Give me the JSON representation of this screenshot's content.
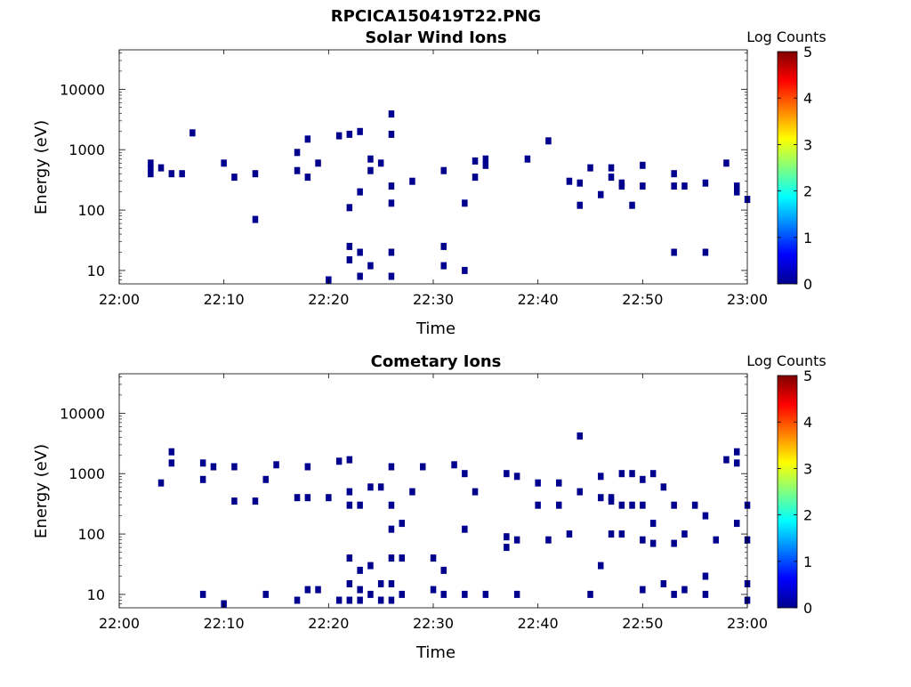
{
  "figure_title": "RPCICA150419T22.PNG",
  "colorbar": {
    "label": "Log Counts",
    "ticks": [
      "0",
      "1",
      "2",
      "3",
      "4",
      "5"
    ],
    "range": [
      0,
      5
    ],
    "colormap": "jet"
  },
  "chart_data": [
    {
      "type": "heatmap",
      "title": "Solar Wind Ions",
      "xlabel": "Time",
      "ylabel": "Energy (eV)",
      "xlim": [
        "22:00",
        "23:00"
      ],
      "ylim": [
        6,
        45000
      ],
      "yscale": "log",
      "x_ticks": [
        "22:00",
        "22:10",
        "22:20",
        "22:30",
        "22:40",
        "22:50",
        "23:00"
      ],
      "y_ticks": [
        "10",
        "100",
        "1000",
        "10000"
      ],
      "cells": [
        [
          "22:03",
          400
        ],
        [
          "22:03",
          500
        ],
        [
          "22:03",
          600
        ],
        [
          "22:04",
          500
        ],
        [
          "22:05",
          400
        ],
        [
          "22:06",
          400
        ],
        [
          "22:07",
          1900
        ],
        [
          "22:10",
          600
        ],
        [
          "22:11",
          350
        ],
        [
          "22:13",
          400
        ],
        [
          "22:13",
          70
        ],
        [
          "22:17",
          450
        ],
        [
          "22:17",
          900
        ],
        [
          "22:18",
          350
        ],
        [
          "22:18",
          1500
        ],
        [
          "22:19",
          600
        ],
        [
          "22:20",
          7
        ],
        [
          "22:21",
          1700
        ],
        [
          "22:22",
          110
        ],
        [
          "22:22",
          1800
        ],
        [
          "22:22",
          25
        ],
        [
          "22:22",
          15
        ],
        [
          "22:23",
          2000
        ],
        [
          "22:23",
          200
        ],
        [
          "22:23",
          20
        ],
        [
          "22:23",
          8
        ],
        [
          "22:24",
          700
        ],
        [
          "22:24",
          450
        ],
        [
          "22:24",
          12
        ],
        [
          "22:25",
          600
        ],
        [
          "22:26",
          1800
        ],
        [
          "22:26",
          3900
        ],
        [
          "22:26",
          250
        ],
        [
          "22:26",
          130
        ],
        [
          "22:26",
          20
        ],
        [
          "22:26",
          8
        ],
        [
          "22:28",
          300
        ],
        [
          "22:31",
          12
        ],
        [
          "22:31",
          25
        ],
        [
          "22:31",
          450
        ],
        [
          "22:33",
          10
        ],
        [
          "22:33",
          130
        ],
        [
          "22:34",
          650
        ],
        [
          "22:34",
          350
        ],
        [
          "22:35",
          700
        ],
        [
          "22:35",
          550
        ],
        [
          "22:39",
          700
        ],
        [
          "22:41",
          1400
        ],
        [
          "22:43",
          300
        ],
        [
          "22:44",
          120
        ],
        [
          "22:44",
          280
        ],
        [
          "22:45",
          500
        ],
        [
          "22:46",
          180
        ],
        [
          "22:47",
          500
        ],
        [
          "22:47",
          350
        ],
        [
          "22:48",
          280
        ],
        [
          "22:48",
          250
        ],
        [
          "22:49",
          120
        ],
        [
          "22:50",
          250
        ],
        [
          "22:50",
          550
        ],
        [
          "22:53",
          20
        ],
        [
          "22:53",
          400
        ],
        [
          "22:53",
          250
        ],
        [
          "22:54",
          250
        ],
        [
          "22:56",
          20
        ],
        [
          "22:56",
          280
        ],
        [
          "22:58",
          600
        ],
        [
          "22:59",
          250
        ],
        [
          "22:59",
          200
        ],
        [
          "23:00",
          150
        ]
      ]
    },
    {
      "type": "heatmap",
      "title": "Cometary Ions",
      "xlabel": "Time",
      "ylabel": "Energy (eV)",
      "xlim": [
        "22:00",
        "23:00"
      ],
      "ylim": [
        6,
        45000
      ],
      "yscale": "log",
      "x_ticks": [
        "22:00",
        "22:10",
        "22:20",
        "22:30",
        "22:40",
        "22:50",
        "23:00"
      ],
      "y_ticks": [
        "10",
        "100",
        "1000",
        "10000"
      ],
      "cells": [
        [
          "22:04",
          700
        ],
        [
          "22:05",
          1500
        ],
        [
          "22:05",
          2300
        ],
        [
          "22:08",
          800
        ],
        [
          "22:08",
          1500
        ],
        [
          "22:08",
          10
        ],
        [
          "22:09",
          1300
        ],
        [
          "22:10",
          7
        ],
        [
          "22:11",
          1300
        ],
        [
          "22:11",
          350
        ],
        [
          "22:13",
          350
        ],
        [
          "22:14",
          10
        ],
        [
          "22:14",
          800
        ],
        [
          "22:15",
          1400
        ],
        [
          "22:17",
          8
        ],
        [
          "22:17",
          400
        ],
        [
          "22:18",
          400
        ],
        [
          "22:18",
          12
        ],
        [
          "22:18",
          1300
        ],
        [
          "22:19",
          12
        ],
        [
          "22:20",
          400
        ],
        [
          "22:21",
          1600
        ],
        [
          "22:21",
          8
        ],
        [
          "22:22",
          300
        ],
        [
          "22:22",
          1700
        ],
        [
          "22:22",
          500
        ],
        [
          "22:22",
          40
        ],
        [
          "22:22",
          15
        ],
        [
          "22:22",
          8
        ],
        [
          "22:23",
          300
        ],
        [
          "22:23",
          25
        ],
        [
          "22:23",
          12
        ],
        [
          "22:23",
          8
        ],
        [
          "22:24",
          600
        ],
        [
          "22:24",
          30
        ],
        [
          "22:24",
          10
        ],
        [
          "22:25",
          600
        ],
        [
          "22:25",
          15
        ],
        [
          "22:25",
          8
        ],
        [
          "22:26",
          1300
        ],
        [
          "22:26",
          300
        ],
        [
          "22:26",
          120
        ],
        [
          "22:26",
          40
        ],
        [
          "22:26",
          15
        ],
        [
          "22:26",
          8
        ],
        [
          "22:27",
          150
        ],
        [
          "22:27",
          40
        ],
        [
          "22:27",
          10
        ],
        [
          "22:28",
          500
        ],
        [
          "22:29",
          1300
        ],
        [
          "22:30",
          40
        ],
        [
          "22:30",
          12
        ],
        [
          "22:31",
          25
        ],
        [
          "22:31",
          10
        ],
        [
          "22:32",
          1400
        ],
        [
          "22:33",
          10
        ],
        [
          "22:33",
          1000
        ],
        [
          "22:33",
          120
        ],
        [
          "22:34",
          500
        ],
        [
          "22:35",
          10
        ],
        [
          "22:37",
          1000
        ],
        [
          "22:37",
          90
        ],
        [
          "22:37",
          60
        ],
        [
          "22:38",
          900
        ],
        [
          "22:38",
          80
        ],
        [
          "22:38",
          10
        ],
        [
          "22:40",
          700
        ],
        [
          "22:40",
          300
        ],
        [
          "22:41",
          80
        ],
        [
          "22:42",
          700
        ],
        [
          "22:42",
          300
        ],
        [
          "22:43",
          100
        ],
        [
          "22:44",
          500
        ],
        [
          "22:44",
          4200
        ],
        [
          "22:45",
          10
        ],
        [
          "22:46",
          900
        ],
        [
          "22:46",
          400
        ],
        [
          "22:46",
          30
        ],
        [
          "22:47",
          400
        ],
        [
          "22:47",
          100
        ],
        [
          "22:47",
          350
        ],
        [
          "22:48",
          1000
        ],
        [
          "22:48",
          300
        ],
        [
          "22:48",
          100
        ],
        [
          "22:49",
          300
        ],
        [
          "22:49",
          1000
        ],
        [
          "22:50",
          800
        ],
        [
          "22:50",
          300
        ],
        [
          "22:50",
          80
        ],
        [
          "22:50",
          12
        ],
        [
          "22:51",
          150
        ],
        [
          "22:51",
          70
        ],
        [
          "22:51",
          1000
        ],
        [
          "22:52",
          600
        ],
        [
          "22:52",
          15
        ],
        [
          "22:53",
          300
        ],
        [
          "22:53",
          70
        ],
        [
          "22:53",
          10
        ],
        [
          "22:54",
          100
        ],
        [
          "22:54",
          12
        ],
        [
          "22:55",
          300
        ],
        [
          "22:56",
          200
        ],
        [
          "22:56",
          20
        ],
        [
          "22:56",
          10
        ],
        [
          "22:57",
          80
        ],
        [
          "22:58",
          1700
        ],
        [
          "22:59",
          1500
        ],
        [
          "22:59",
          2300
        ],
        [
          "22:59",
          150
        ],
        [
          "23:00",
          300
        ],
        [
          "23:00",
          80
        ],
        [
          "23:00",
          15
        ],
        [
          "23:00",
          8
        ]
      ]
    }
  ]
}
